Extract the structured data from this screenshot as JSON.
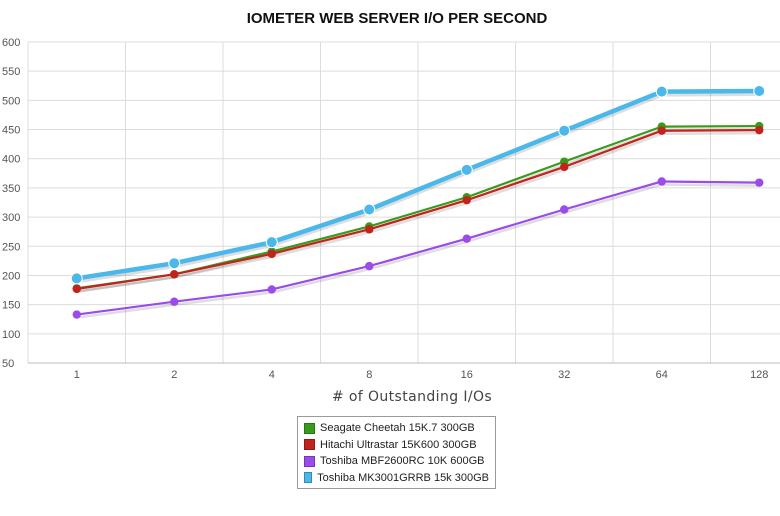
{
  "chart_data": {
    "type": "line",
    "title": "IOMETER WEB SERVER I/O PER SECOND",
    "xlabel": "# of Outstanding I/Os",
    "ylabel": "",
    "categories": [
      "1",
      "2",
      "4",
      "8",
      "16",
      "32",
      "64",
      "128"
    ],
    "ylim": [
      50,
      600
    ],
    "yticks": [
      50,
      100,
      150,
      200,
      250,
      300,
      350,
      400,
      450,
      500,
      550,
      600
    ],
    "grid": true,
    "legend_position": "bottom-center",
    "series": [
      {
        "name": "Seagate Cheetah 15K.7 300GB",
        "color": "#3a9a1a",
        "values": [
          178,
          202,
          241,
          284,
          334,
          395,
          455,
          456
        ]
      },
      {
        "name": "Hitachi Ultrastar 15K600 300GB",
        "color": "#c0241c",
        "values": [
          177,
          202,
          237,
          279,
          329,
          386,
          448,
          449
        ]
      },
      {
        "name": "Toshiba MBF2600RC 10K 600GB",
        "color": "#9b4bea",
        "values": [
          133,
          155,
          176,
          216,
          263,
          313,
          361,
          359
        ]
      },
      {
        "name": "Toshiba MK3001GRRB 15k 300GB",
        "color": "#4ab8ea",
        "values": [
          195,
          221,
          257,
          313,
          381,
          448,
          515,
          516
        ]
      }
    ]
  }
}
